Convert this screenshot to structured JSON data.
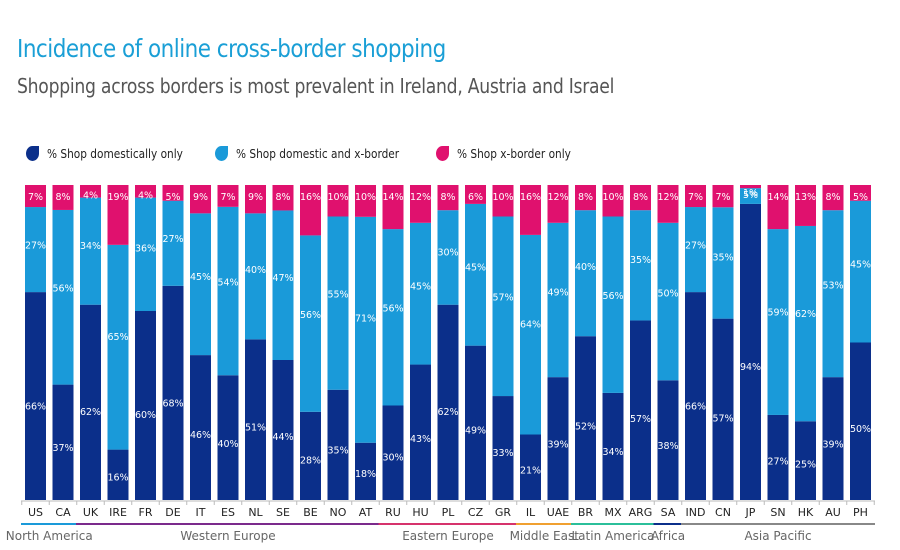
{
  "chart_data": {
    "type": "bar",
    "stacked": true,
    "normalized": true,
    "title": "Incidence of online cross-border shopping",
    "subtitle": "Shopping across borders is most prevalent in Ireland, Austria and Israel",
    "xlabel": "",
    "ylabel": "",
    "ylim": [
      0,
      100
    ],
    "grid": false,
    "legend_position": "top-left",
    "categories": [
      "US",
      "CA",
      "UK",
      "IRE",
      "FR",
      "DE",
      "IT",
      "ES",
      "NL",
      "SE",
      "BE",
      "NO",
      "AT",
      "RU",
      "HU",
      "PL",
      "CZ",
      "GR",
      "IL",
      "UAE",
      "BR",
      "MX",
      "ARG",
      "SA",
      "IND",
      "CN",
      "JP",
      "SN",
      "HK",
      "AU",
      "PH"
    ],
    "series": [
      {
        "name": "% Shop domestically only",
        "color": "#0b2f8a",
        "values": [
          66,
          37,
          62,
          16,
          60,
          68,
          46,
          40,
          51,
          44,
          28,
          35,
          18,
          30,
          43,
          62,
          49,
          33,
          21,
          39,
          52,
          34,
          57,
          38,
          66,
          57,
          94,
          27,
          25,
          39,
          50
        ]
      },
      {
        "name": "% Shop domestic and x-border",
        "color": "#1a9ad9",
        "values": [
          27,
          56,
          34,
          65,
          36,
          27,
          45,
          54,
          40,
          47,
          56,
          55,
          71,
          56,
          45,
          30,
          45,
          57,
          64,
          49,
          40,
          56,
          35,
          50,
          27,
          35,
          5,
          59,
          62,
          53,
          45
        ]
      },
      {
        "name": "% Shop x-border only",
        "color": "#e0116e",
        "values": [
          7,
          8,
          4,
          19,
          4,
          5,
          9,
          7,
          9,
          8,
          16,
          10,
          10,
          14,
          12,
          8,
          6,
          10,
          16,
          12,
          8,
          10,
          8,
          12,
          7,
          7,
          1,
          14,
          13,
          8,
          5
        ]
      }
    ],
    "regions": [
      {
        "name": "North America",
        "start": 0,
        "end": 1,
        "color": "#1a9ad9"
      },
      {
        "name": "Western Europe",
        "start": 2,
        "end": 12,
        "color": "#7b2a8c"
      },
      {
        "name": "Eastern Europe",
        "start": 13,
        "end": 17,
        "color": "#d6336c"
      },
      {
        "name": "Middle East",
        "start": 18,
        "end": 19,
        "color": "#f0a030"
      },
      {
        "name": "Latin America",
        "start": 20,
        "end": 22,
        "color": "#2bbf9a"
      },
      {
        "name": "Africa",
        "start": 23,
        "end": 23,
        "color": "#0b2f8a"
      },
      {
        "name": "Asia Pacific",
        "start": 24,
        "end": 30,
        "color": "#888888"
      }
    ]
  },
  "legend": [
    {
      "label": "% Shop domestically only",
      "color": "#0b2f8a"
    },
    {
      "label": "% Shop domestic and x-border",
      "color": "#1a9ad9"
    },
    {
      "label": "% Shop x-border only",
      "color": "#e0116e"
    }
  ]
}
